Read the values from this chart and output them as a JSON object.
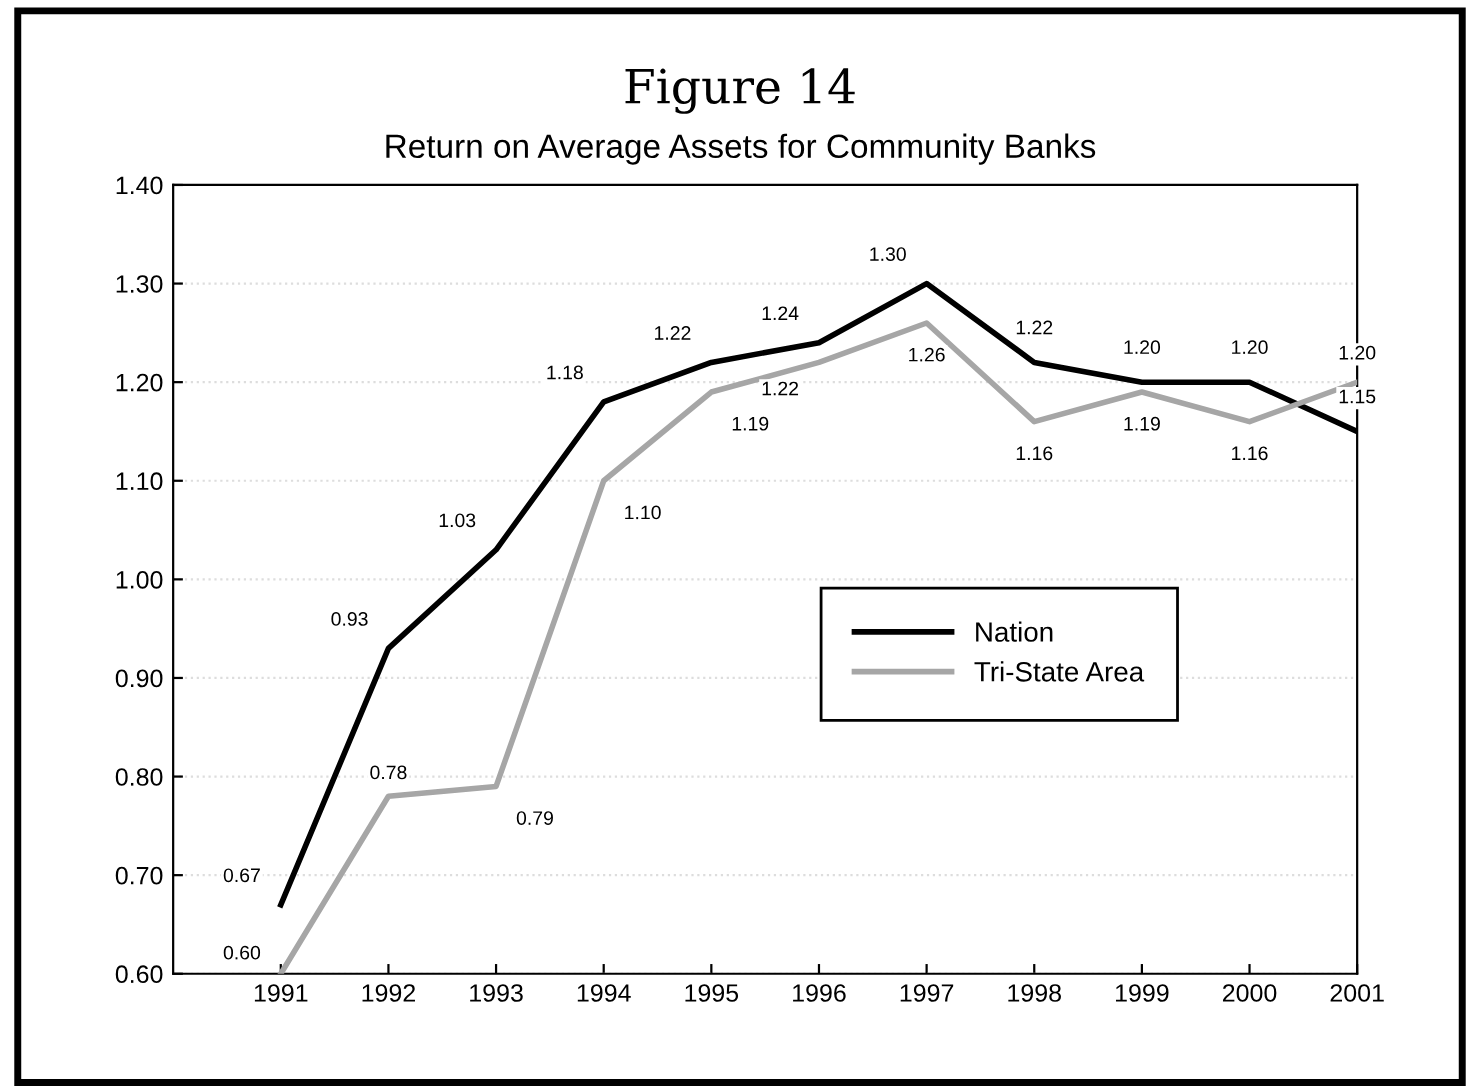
{
  "chart_data": {
    "type": "line",
    "title": "Figure 14",
    "subtitle": "Return on Average Assets for Community Banks",
    "x": [
      1991,
      1992,
      1993,
      1994,
      1995,
      1996,
      1997,
      1998,
      1999,
      2000,
      2001
    ],
    "series": [
      {
        "name": "Nation",
        "color": "#000000",
        "values": [
          0.67,
          0.93,
          1.03,
          1.18,
          1.22,
          1.24,
          1.3,
          1.22,
          1.2,
          1.2,
          1.15
        ],
        "value_labels": [
          "0.67",
          "0.93",
          "1.03",
          "1.18",
          "1.22",
          "1.24",
          "1.30",
          "1.22",
          "1.20",
          "1.20",
          "1.15"
        ]
      },
      {
        "name": "Tri-State Area",
        "color": "#a6a6a6",
        "values": [
          0.6,
          0.78,
          0.79,
          1.1,
          1.19,
          1.22,
          1.26,
          1.16,
          1.19,
          1.16,
          1.2
        ],
        "value_labels": [
          "0.60",
          "0.78",
          "0.79",
          "1.10",
          "1.19",
          "1.22",
          "1.26",
          "1.16",
          "1.19",
          "1.16",
          "1.20"
        ]
      }
    ],
    "xlim": [
      1990,
      2001
    ],
    "xticks": [
      1991,
      1992,
      1993,
      1994,
      1995,
      1996,
      1997,
      1998,
      1999,
      2000,
      2001
    ],
    "ylim": [
      0.6,
      1.4
    ],
    "yticks": [
      {
        "value": 0.6,
        "label": "0.60"
      },
      {
        "value": 0.7,
        "label": "0.70"
      },
      {
        "value": 0.8,
        "label": "0.80"
      },
      {
        "value": 0.9,
        "label": "0.90"
      },
      {
        "value": 1.0,
        "label": "1.00"
      },
      {
        "value": 1.1,
        "label": "1.10"
      },
      {
        "value": 1.2,
        "label": "1.20"
      },
      {
        "value": 1.3,
        "label": "1.30"
      },
      {
        "value": 1.4,
        "label": "1.40"
      }
    ],
    "grid": "y",
    "legend": "center right",
    "marker": "none",
    "line_style": "solid"
  }
}
